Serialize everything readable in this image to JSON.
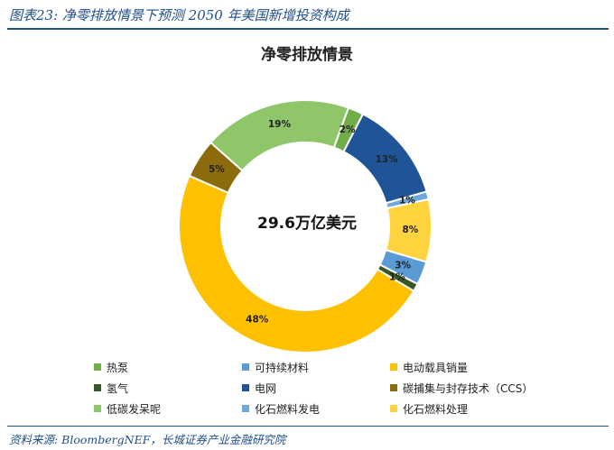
{
  "figure_title": "图表23:  净零排放情景下预测 2050 年美国新增投资构成",
  "source": "资料来源: BloombergNEF，长城证券产业金融研究院",
  "chart_data": {
    "type": "pie",
    "style": "donut",
    "title": "净零排放情景",
    "center_label": "29.6万亿美元",
    "slices": [
      {
        "label": "热泵",
        "value": 2,
        "value_label": "2%",
        "color": "#70ad47"
      },
      {
        "label": "电网",
        "value": 13,
        "value_label": "13%",
        "color": "#1f5597"
      },
      {
        "label": "化石燃料发电",
        "value": 1,
        "value_label": "1%",
        "color": "#6fa8dc"
      },
      {
        "label": "化石燃料处理",
        "value": 8,
        "value_label": "8%",
        "color": "#ffd33d"
      },
      {
        "label": "可持续材料",
        "value": 3,
        "value_label": "3%",
        "color": "#5b9bd5"
      },
      {
        "label": "氢气",
        "value": 1,
        "value_label": "1%",
        "color": "#385723"
      },
      {
        "label": "电动载具销量",
        "value": 48,
        "value_label": "48%",
        "color": "#ffc000"
      },
      {
        "label": "碳捕集与封存技术（CCS）",
        "value": 5,
        "value_label": "5%",
        "color": "#8b6b0b"
      },
      {
        "label": "低碳发呆呢",
        "value": 19,
        "value_label": "19%",
        "color": "#8fc66a"
      }
    ],
    "legend": [
      {
        "label": "热泵",
        "color": "#70ad47"
      },
      {
        "label": "可持续材料",
        "color": "#5b9bd5"
      },
      {
        "label": "电动载具销量",
        "color": "#ffc000"
      },
      {
        "label": "氢气",
        "color": "#385723"
      },
      {
        "label": "电网",
        "color": "#1f5597"
      },
      {
        "label": "碳捕集与封存技术（CCS）",
        "color": "#8b6b0b"
      },
      {
        "label": "低碳发呆呢",
        "color": "#8fc66a"
      },
      {
        "label": "化石燃料发电",
        "color": "#6fa8dc"
      },
      {
        "label": "化石燃料处理",
        "color": "#ffd33d"
      }
    ],
    "legend_position": "bottom"
  }
}
